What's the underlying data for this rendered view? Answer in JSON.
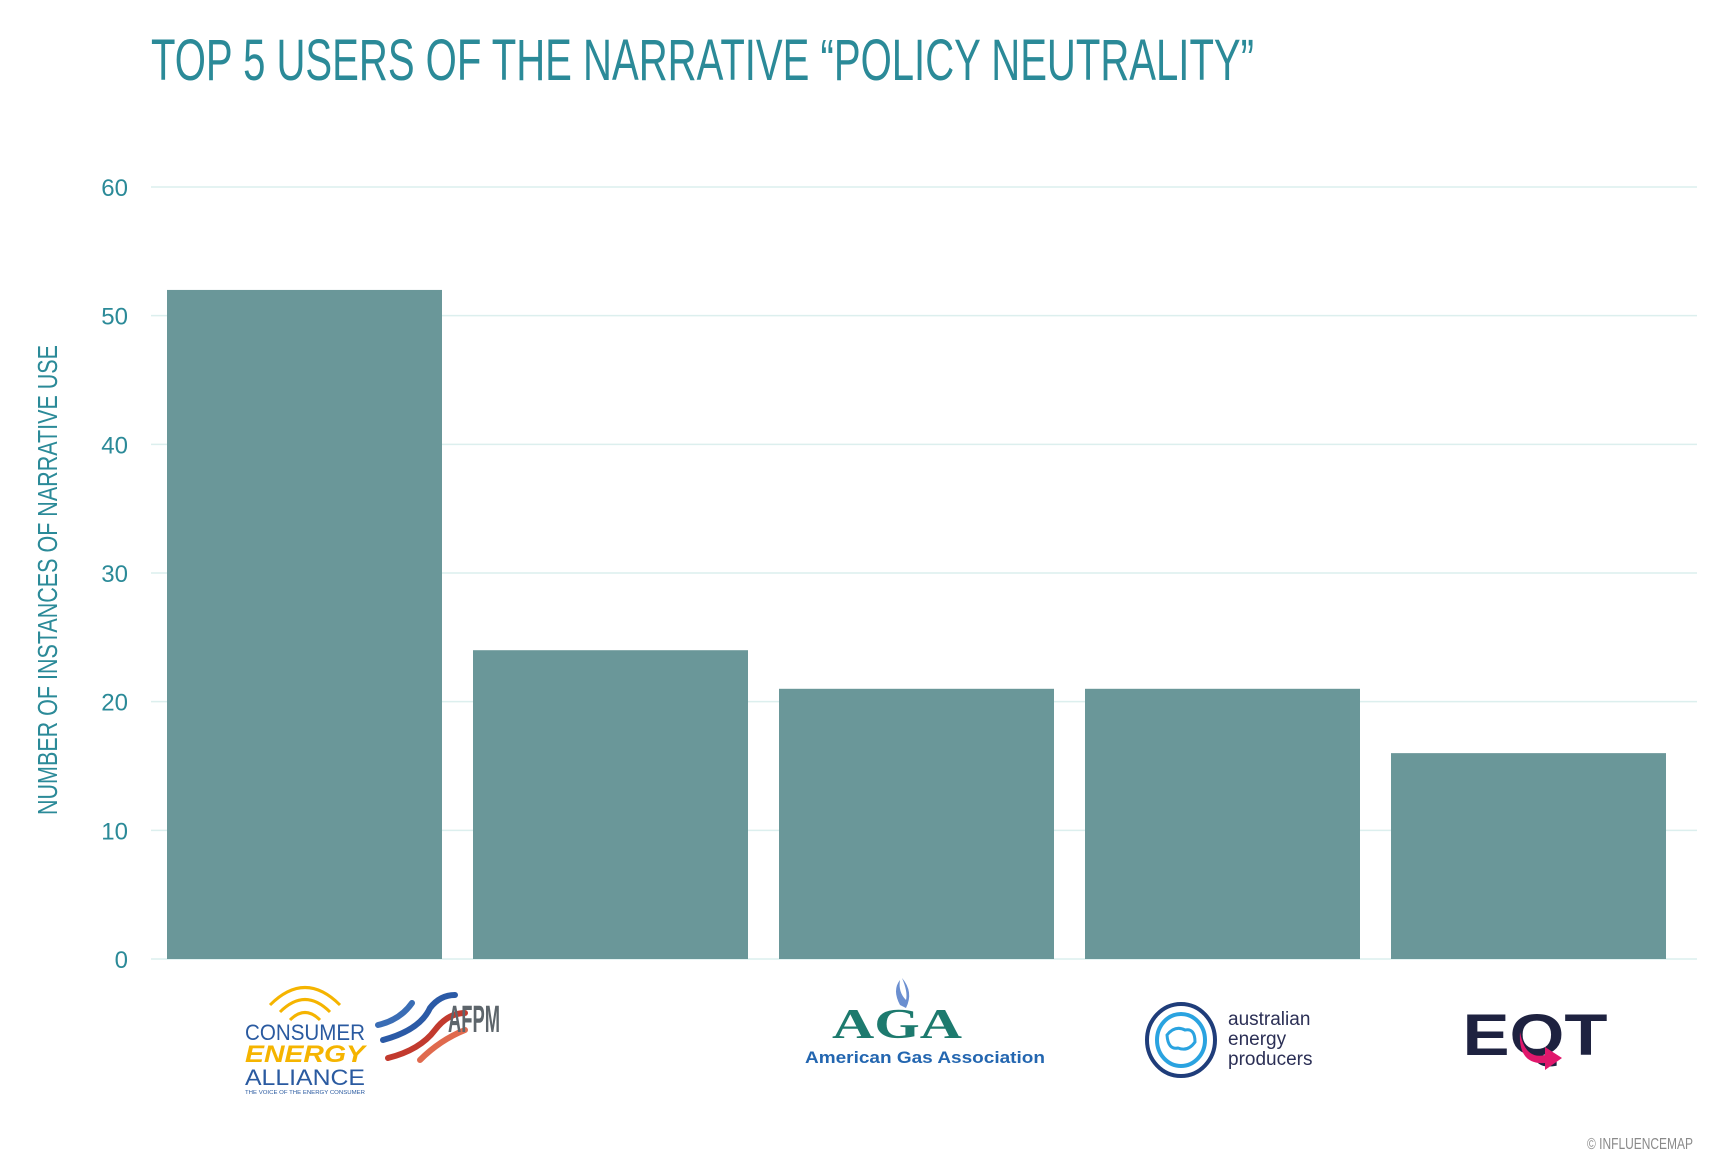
{
  "chart_data": {
    "type": "bar",
    "title": "TOP 5 USERS OF THE NARRATIVE “POLICY NEUTRALITY”",
    "xlabel": "",
    "ylabel": "NUMBER OF INSTANCES OF NARRATIVE USE",
    "ylim": [
      0,
      60
    ],
    "yticks": [
      0,
      10,
      20,
      30,
      40,
      50,
      60
    ],
    "grid": true,
    "categories": [
      "Consumer Energy Alliance",
      "AFPM",
      "American Gas Association",
      "Australian Energy Producers",
      "EQT"
    ],
    "values": [
      52,
      24,
      21,
      21,
      16
    ],
    "bar_color": "#6a9799"
  },
  "colors": {
    "title": "#2b8a98",
    "grid": "#dcefee"
  },
  "logos": {
    "cea": {
      "line1": "CONSUMER",
      "line2": "ENERGY",
      "line3": "ALLIANCE",
      "tagline": "THE VOICE OF THE ENERGY CONSUMER"
    },
    "afpm": {
      "text": "AFPM"
    },
    "aga": {
      "abbr": "AGA",
      "name": "American Gas Association"
    },
    "aep": {
      "line1": "australian",
      "line2": "energy",
      "line3": "producers"
    },
    "eqt": {
      "text": "EQT"
    }
  },
  "footer": {
    "credit": "© INFLUENCEMAP"
  }
}
